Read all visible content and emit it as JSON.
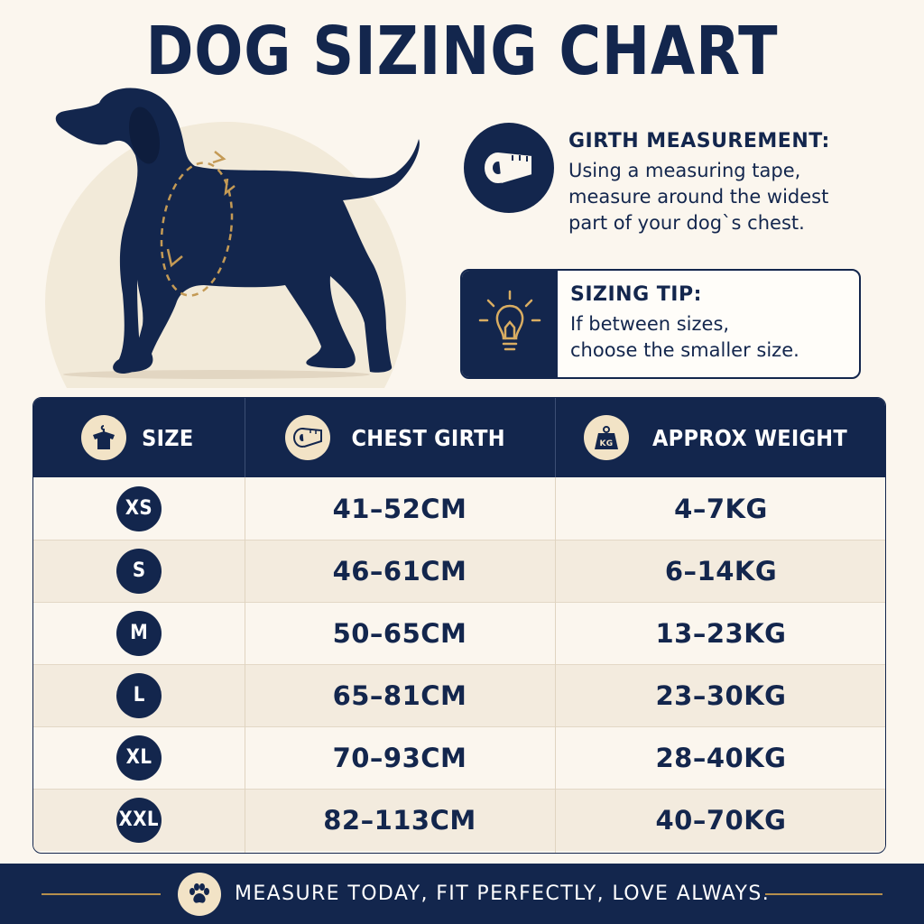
{
  "title": "DOG SIZING CHART",
  "girth": {
    "heading": "GIRTH MEASUREMENT:",
    "lines": [
      "Using a measuring tape,",
      "measure around the widest",
      "part of your dog`s chest."
    ],
    "icon": "measuring-tape-icon"
  },
  "tip": {
    "heading": "SIZING TIP:",
    "lines": [
      "If between sizes,",
      "choose the smaller size."
    ],
    "icon": "lightbulb-icon"
  },
  "table": {
    "headers": {
      "size": "SIZE",
      "chest": "CHEST GIRTH",
      "weight": "APPROX WEIGHT"
    },
    "rows": [
      {
        "size": "XS",
        "chest": "41–52CM",
        "weight": "4–7KG"
      },
      {
        "size": "S",
        "chest": "46–61CM",
        "weight": "6–14KG"
      },
      {
        "size": "M",
        "chest": "50–65CM",
        "weight": "13–23KG"
      },
      {
        "size": "L",
        "chest": "65–81CM",
        "weight": "23–30KG"
      },
      {
        "size": "XL",
        "chest": "70–93CM",
        "weight": "28–40KG"
      },
      {
        "size": "XXL",
        "chest": "82–113CM",
        "weight": "40–70KG"
      }
    ],
    "weight_icon_label": "KG"
  },
  "footer": {
    "text": "MEASURE TODAY, FIT PERFECTLY, LOVE ALWAYS.",
    "icon": "paw-icon"
  },
  "colors": {
    "navy": "#13264d",
    "cream": "#fbf6ee",
    "gold": "#c49a55",
    "icon_bg": "#f2e3c6"
  }
}
